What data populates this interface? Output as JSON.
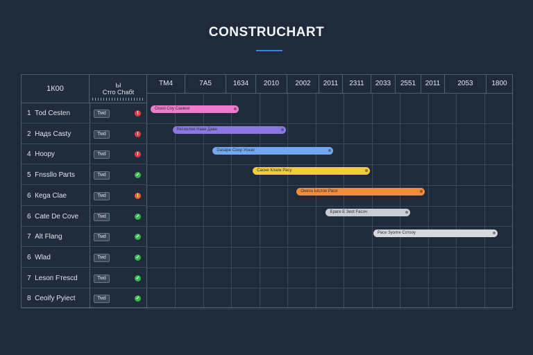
{
  "app": {
    "title": "CONSTRUCHART"
  },
  "left_header": {
    "col1": "1К00",
    "col2_line1": "Ы",
    "col2_line2": "Стго Сhабt"
  },
  "timeline_header": [
    "ТМ4",
    "7А5",
    "1634",
    "2010",
    "2002",
    "2011",
    "2311",
    "2033",
    "2551",
    "2011",
    "2053",
    "1800"
  ],
  "tasks": [
    {
      "num": "1",
      "name": "Тоd Cesten",
      "tag": "Тмd",
      "status": "critical",
      "status_color": "#e23b4a",
      "bar": {
        "label": "Ооаsl Соу Саевoе",
        "start": 0.0,
        "end": 0.25,
        "color": "#f07acb"
      }
    },
    {
      "num": "2",
      "name": "Надs Саsty",
      "tag": "Тмd",
      "status": "critical",
      "status_color": "#e23b4a",
      "bar": {
        "label": "Ресоолое Нане Даве",
        "start": 0.06,
        "end": 0.38,
        "color": "#8b78e6"
      }
    },
    {
      "num": "4",
      "name": "Ноору",
      "tag": "Тмd",
      "status": "critical",
      "status_color": "#e23b4a",
      "bar": {
        "label": "Dаsаре Соор Уснаv",
        "start": 0.17,
        "end": 0.51,
        "color": "#73a8f0"
      }
    },
    {
      "num": "5",
      "name": "Fnssllo Рагts",
      "tag": "Тмd",
      "status": "done",
      "status_color": "#35b84d",
      "bar": {
        "label": "Сасне Клапк Расу",
        "start": 0.28,
        "end": 0.61,
        "color": "#f3cc3c"
      }
    },
    {
      "num": "6",
      "name": "Кеgа Сlае",
      "tag": "Тмd",
      "status": "warning",
      "status_color": "#e4692b",
      "bar": {
        "label": "Онеsu Ыслое Расе",
        "start": 0.4,
        "end": 0.76,
        "color": "#f28c3c"
      }
    },
    {
      "num": "6",
      "name": "Саtе Dе Соvе",
      "tag": "Тмd",
      "status": "done",
      "status_color": "#35b84d",
      "bar": {
        "label": "Ераге Е Зеоt Fасоч",
        "start": 0.48,
        "end": 0.72,
        "color": "#c9ccd3"
      }
    },
    {
      "num": "7",
      "name": "Аlt Flang",
      "tag": "Тмd",
      "status": "done",
      "status_color": "#35b84d",
      "bar": {
        "label": "Расе Зуолге Сотsоу",
        "start": 0.61,
        "end": 0.96,
        "color": "#d7d8dc"
      }
    },
    {
      "num": "6",
      "name": "Wlad",
      "tag": "Тмd",
      "status": "done",
      "status_color": "#35b84d",
      "bar": null
    },
    {
      "num": "7",
      "name": "Lеsоп Fтеsсd",
      "tag": "Тмd",
      "status": "done",
      "status_color": "#35b84d",
      "bar": null
    },
    {
      "num": "8",
      "name": "Сеоifу Руiесt",
      "tag": "Тмd",
      "status": "done",
      "status_color": "#35b84d",
      "bar": null
    }
  ],
  "colors": {
    "background": "#1f2a3a",
    "accent": "#3f7fd6",
    "grid": "#3c495c",
    "border": "#526074"
  }
}
